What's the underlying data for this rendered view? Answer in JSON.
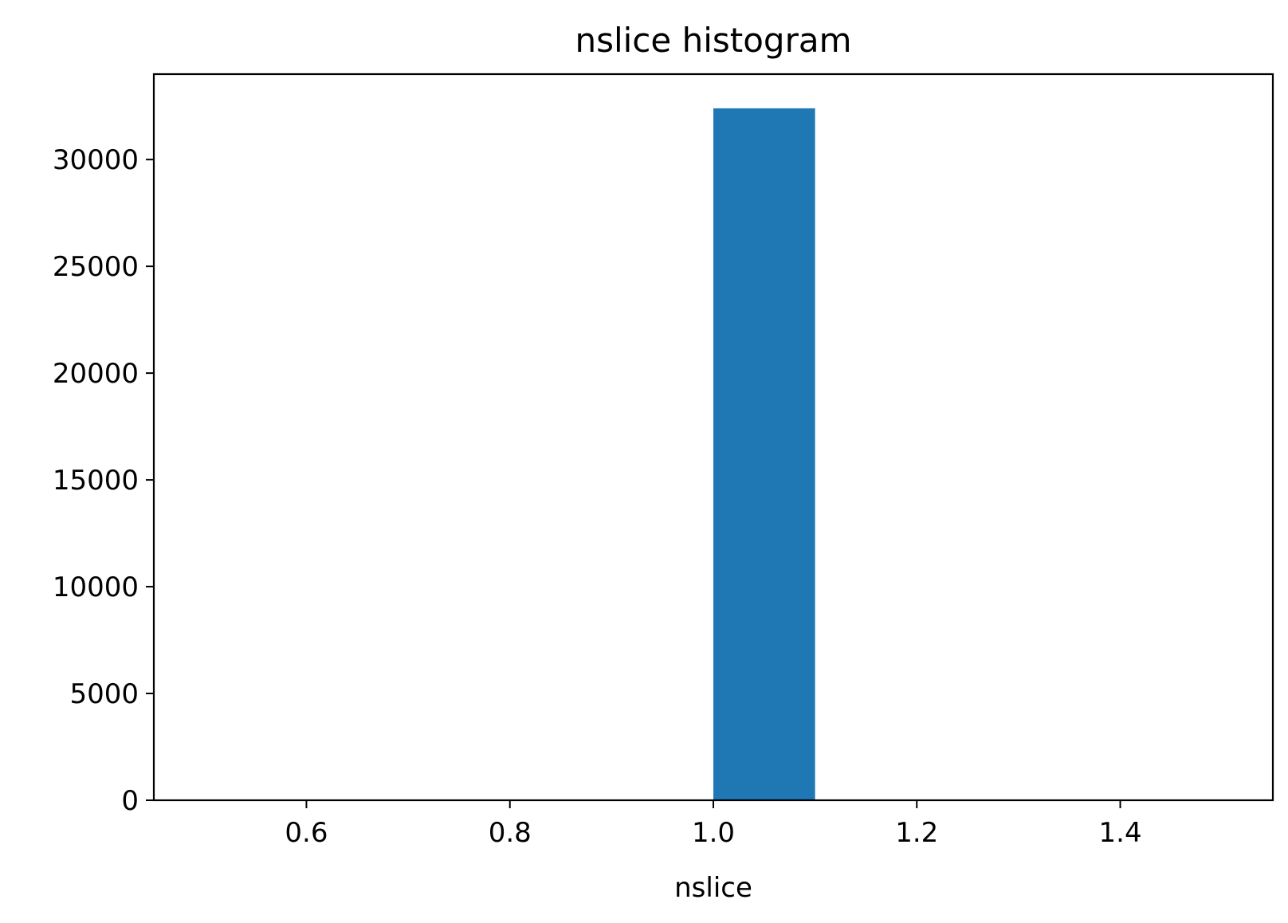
{
  "chart_data": {
    "type": "bar",
    "title": "nslice histogram",
    "xlabel": "nslice",
    "ylabel": "",
    "xlim": [
      0.45,
      1.55
    ],
    "ylim": [
      0,
      34000
    ],
    "xticks": [
      0.6,
      0.8,
      1.0,
      1.2,
      1.4
    ],
    "xtick_labels": [
      "0.6",
      "0.8",
      "1.0",
      "1.2",
      "1.4"
    ],
    "yticks": [
      0,
      5000,
      10000,
      15000,
      20000,
      25000,
      30000
    ],
    "ytick_labels": [
      "0",
      "5000",
      "10000",
      "15000",
      "20000",
      "25000",
      "30000"
    ],
    "bins": [
      {
        "x0": 0.5,
        "x1": 0.6,
        "count": 0
      },
      {
        "x0": 0.6,
        "x1": 0.7,
        "count": 0
      },
      {
        "x0": 0.7,
        "x1": 0.8,
        "count": 0
      },
      {
        "x0": 0.8,
        "x1": 0.9,
        "count": 0
      },
      {
        "x0": 0.9,
        "x1": 1.0,
        "count": 0
      },
      {
        "x0": 1.0,
        "x1": 1.1,
        "count": 32400
      },
      {
        "x0": 1.1,
        "x1": 1.2,
        "count": 0
      },
      {
        "x0": 1.2,
        "x1": 1.3,
        "count": 0
      },
      {
        "x0": 1.3,
        "x1": 1.4,
        "count": 0
      },
      {
        "x0": 1.4,
        "x1": 1.5,
        "count": 0
      }
    ],
    "bar_color": "#1f77b4",
    "grid": false,
    "legend": "none"
  }
}
